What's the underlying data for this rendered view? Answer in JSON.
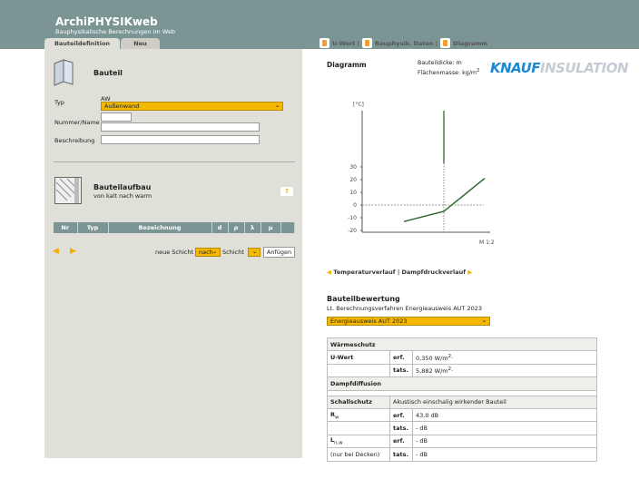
{
  "header": {
    "title": "ArchiPHYSIKweb",
    "subtitle": "Bauphysikalische Berechnungen im Web",
    "bg": "#7a9594"
  },
  "tabs": [
    {
      "label": "Bauteildefinition"
    },
    {
      "label": "Neu"
    }
  ],
  "topnav": [
    {
      "label": "U-Wert |",
      "icon": "document-icon"
    },
    {
      "label": "Bauphysik. Daten |",
      "icon": "document-icon"
    },
    {
      "label": "Diagramm",
      "icon": "document-icon"
    }
  ],
  "bauteil": {
    "heading": "Bauteil",
    "typ_label": "Typ",
    "typ_code": "AW",
    "typ_value": "Außenwand",
    "nummer_label": "Nummer/Name",
    "nummer_value": "",
    "name_value": "",
    "beschreibung_label": "Beschreibung",
    "beschreibung_value": ""
  },
  "aufbau": {
    "heading": "Bauteilaufbau",
    "subheading": "von kalt nach warm",
    "help": "?",
    "columns": [
      "Nr",
      "Typ",
      "Bezeichnung",
      "d",
      "ρ",
      "λ",
      "μ",
      ""
    ],
    "neue_schicht_label": "neue Schicht",
    "position_value": "nach",
    "schicht_label": "Schicht",
    "schicht_value": "",
    "add_button": "Anfügen"
  },
  "diagram": {
    "heading": "Diagramm",
    "dicke": "Bauteildicke: m",
    "masse": "Flächenmasse: kg/m",
    "masse_sup": "2",
    "logo_a": "KNAUF",
    "logo_b": "INSULATION",
    "nav_temp": "Temperaturverlauf",
    "nav_sep": "|",
    "nav_dampf": "Dampfdruckverlauf"
  },
  "chart_data": {
    "type": "line",
    "ylabel": "[°C]",
    "scale_label": "M 1:2",
    "yticks": [
      30,
      20,
      10,
      0,
      -10,
      -20
    ],
    "ylim": [
      -20,
      30
    ],
    "series": [
      {
        "values": [
          -13,
          -5,
          21
        ]
      }
    ],
    "color": "#2e6b2e"
  },
  "bewertung": {
    "heading": "Bauteilbewertung",
    "subheading": "Lt. Berechnungsverfahren Energieausweis AUT 2023",
    "select_value": "Energieausweis AUT 2023",
    "waermeschutz": "Wärmeschutz",
    "uwert": "U-Wert",
    "erf": "erf.",
    "tats": "tats.",
    "u_erf": "0,350 W/m",
    "u_tats": "5,882 W/m",
    "sup": "2",
    "dot": "·",
    "dampf": "Dampfdiffusion",
    "schall": "Schallschutz",
    "schall_note": "Akustisch einschalig wirkender Bauteil",
    "rw": "R",
    "rw_sub": "w",
    "rw_erf": "43,0 dB",
    "rw_tats": "- dB",
    "ln": "L",
    "ln_sub": "n,w",
    "ln_erf": "- dB",
    "ln_tats": "- dB",
    "ln_note": "(nur bei Decken)"
  }
}
